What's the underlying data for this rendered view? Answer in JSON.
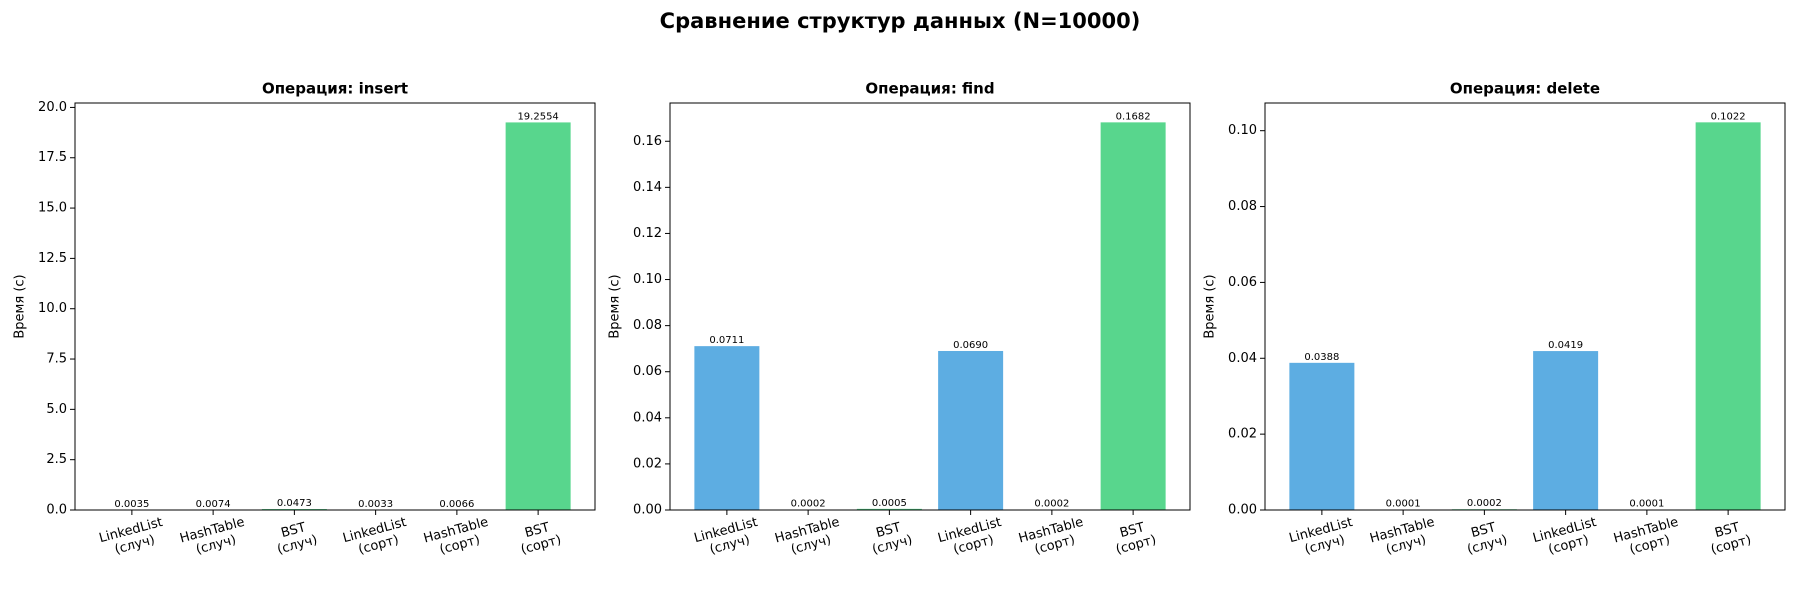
{
  "title": "Сравнение структур данных (N=10000)",
  "chart_data": [
    {
      "type": "bar",
      "title": "Операция: insert",
      "ylabel": "Время (с)",
      "categories": [
        "LinkedList\n(случ)",
        "HashTable\n(случ)",
        "BST\n(случ)",
        "LinkedList\n(сорт)",
        "HashTable\n(сорт)",
        "BST\n(сорт)"
      ],
      "values": [
        0.0035,
        0.0074,
        0.0473,
        0.0033,
        0.0066,
        19.2554
      ],
      "value_labels": [
        "0.0035",
        "0.0074",
        "0.0473",
        "0.0033",
        "0.0066",
        "19.2554"
      ],
      "colors": [
        "#5dade2",
        "#e67e22",
        "#58d68d",
        "#5dade2",
        "#e67e22",
        "#58d68d"
      ],
      "ylim": [
        0,
        20.22
      ],
      "yticks": [
        {
          "value": 0,
          "label": "0.0"
        },
        2.5,
        {
          "value": 5,
          "label": "5.0"
        },
        7.5,
        {
          "value": 10,
          "label": "10.0"
        },
        12.5,
        {
          "value": 15,
          "label": "15.0"
        },
        17.5,
        {
          "value": 20,
          "label": "20.0"
        }
      ]
    },
    {
      "type": "bar",
      "title": "Операция: find",
      "ylabel": "Время (с)",
      "categories": [
        "LinkedList\n(случ)",
        "HashTable\n(случ)",
        "BST\n(случ)",
        "LinkedList\n(сорт)",
        "HashTable\n(сорт)",
        "BST\n(сорт)"
      ],
      "values": [
        0.0711,
        0.0002,
        0.0005,
        0.069,
        0.0002,
        0.1682
      ],
      "value_labels": [
        "0.0711",
        "0.0002",
        "0.0005",
        "0.0690",
        "0.0002",
        "0.1682"
      ],
      "colors": [
        "#5dade2",
        "#e67e22",
        "#58d68d",
        "#5dade2",
        "#e67e22",
        "#58d68d"
      ],
      "ylim": [
        0,
        0.1766
      ],
      "yticks": [
        {
          "value": 0,
          "label": "0.00"
        },
        0.02,
        0.04,
        0.06,
        0.08,
        {
          "value": 0.1,
          "label": "0.10"
        },
        0.12,
        0.14,
        0.16
      ]
    },
    {
      "type": "bar",
      "title": "Операция: delete",
      "ylabel": "Время (с)",
      "categories": [
        "LinkedList\n(случ)",
        "HashTable\n(случ)",
        "BST\n(случ)",
        "LinkedList\n(сорт)",
        "HashTable\n(сорт)",
        "BST\n(сорт)"
      ],
      "values": [
        0.0388,
        0.0001,
        0.0002,
        0.0419,
        0.0001,
        0.1022
      ],
      "value_labels": [
        "0.0388",
        "0.0001",
        "0.0002",
        "0.0419",
        "0.0001",
        "0.1022"
      ],
      "colors": [
        "#5dade2",
        "#e67e22",
        "#58d68d",
        "#5dade2",
        "#e67e22",
        "#58d68d"
      ],
      "ylim": [
        0,
        0.1073
      ],
      "yticks": [
        {
          "value": 0,
          "label": "0.00"
        },
        0.02,
        0.04,
        0.06,
        0.08,
        {
          "value": 0.1,
          "label": "0.10"
        }
      ]
    }
  ]
}
